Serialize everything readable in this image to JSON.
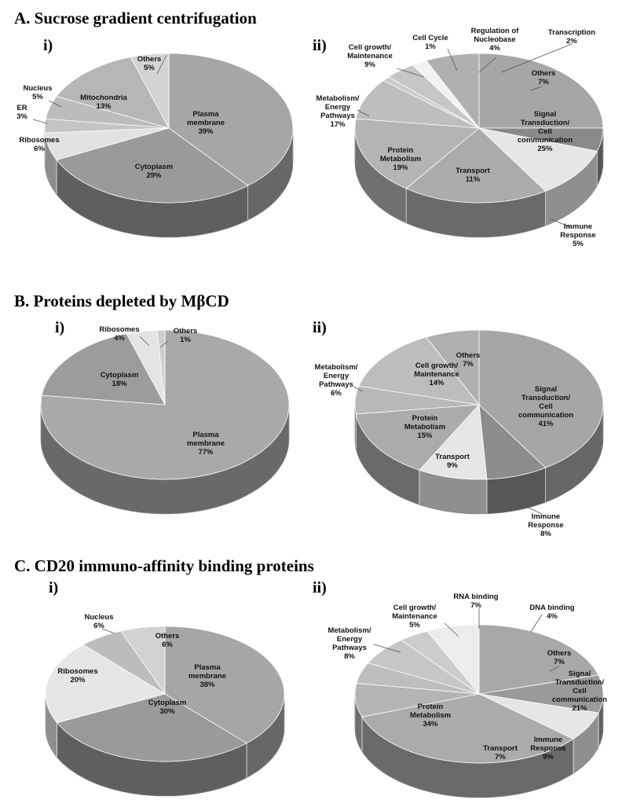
{
  "sections": [
    {
      "letter": "A.",
      "title": "Sucrose gradient centrifugation"
    },
    {
      "letter": "B.",
      "title": "Proteins depleted by MβCD"
    },
    {
      "letter": "C.",
      "title": "CD20 immuno-affinity binding proteins"
    }
  ],
  "chart_data": [
    {
      "type": "pie",
      "section": "A",
      "panel": "i)",
      "slices": [
        {
          "label": [
            "Plasma",
            "membrane"
          ],
          "value": 39,
          "display": "39%",
          "color": "#a6a6a6"
        },
        {
          "label": [
            "Cytoplasm"
          ],
          "value": 29,
          "display": "29%",
          "color": "#9a9a9a"
        },
        {
          "label": [
            "Ribosomes"
          ],
          "value": 6,
          "display": "6%",
          "color": "#e2e2e2"
        },
        {
          "label": [
            "ER"
          ],
          "value": 3,
          "display": "3%",
          "color": "#c4c4c4"
        },
        {
          "label": [
            "Nucleus"
          ],
          "value": 5,
          "display": "5%",
          "color": "#bcbcbc"
        },
        {
          "label": [
            "Mitochondria"
          ],
          "value": 13,
          "display": "13%",
          "color": "#b6b6b6"
        },
        {
          "label": [
            "Others"
          ],
          "value": 5,
          "display": "5%",
          "color": "#d4d4d4"
        }
      ]
    },
    {
      "type": "pie",
      "section": "A",
      "panel": "ii)",
      "slices": [
        {
          "label": [
            "Signal",
            "Transduction/",
            "Cell",
            "communication"
          ],
          "value": 25,
          "display": "25%",
          "color": "#a6a6a6"
        },
        {
          "label": [
            "Immune",
            "Response"
          ],
          "value": 5,
          "display": "5%",
          "color": "#8a8a8a"
        },
        {
          "label": [
            "Transport"
          ],
          "value": 11,
          "display": "11%",
          "color": "#e6e6e6"
        },
        {
          "label": [
            "Protein",
            "Metabolism"
          ],
          "value": 19,
          "display": "19%",
          "color": "#ababab"
        },
        {
          "label": [
            "Metabolism/",
            "Energy",
            "Pathways"
          ],
          "value": 17,
          "display": "17%",
          "color": "#b4b4b4"
        },
        {
          "label": [
            "Cell growth/",
            "Maintenance"
          ],
          "value": 9,
          "display": "9%",
          "color": "#bebebe"
        },
        {
          "label": [
            "Cell Cycle"
          ],
          "value": 1,
          "display": "1%",
          "color": "#cacaca"
        },
        {
          "label": [
            "Regulation of",
            "Nucleobase"
          ],
          "value": 4,
          "display": "4%",
          "color": "#c6c6c6"
        },
        {
          "label": [
            "Transcription"
          ],
          "value": 2,
          "display": "2%",
          "color": "#f2f2f2"
        },
        {
          "label": [
            "Others"
          ],
          "value": 7,
          "display": "7%",
          "color": "#b0b0b0"
        }
      ]
    },
    {
      "type": "pie",
      "section": "B",
      "panel": "i)",
      "slices": [
        {
          "label": [
            "Plasma",
            "membrane"
          ],
          "value": 77,
          "display": "77%",
          "color": "#a9a9a9"
        },
        {
          "label": [
            "Cytoplasm"
          ],
          "value": 18,
          "display": "18%",
          "color": "#9c9c9c"
        },
        {
          "label": [
            "Ribosomes"
          ],
          "value": 4,
          "display": "4%",
          "color": "#e4e4e4"
        },
        {
          "label": [
            "Others"
          ],
          "value": 1,
          "display": "1%",
          "color": "#cfcfcf"
        }
      ]
    },
    {
      "type": "pie",
      "section": "B",
      "panel": "ii)",
      "slices": [
        {
          "label": [
            "Signal",
            "Transduction/",
            "Cell",
            "communication"
          ],
          "value": 41,
          "display": "41%",
          "color": "#a6a6a6"
        },
        {
          "label": [
            "Immune",
            "Response"
          ],
          "value": 8,
          "display": "8%",
          "color": "#8c8c8c"
        },
        {
          "label": [
            "Transport"
          ],
          "value": 9,
          "display": "9%",
          "color": "#e6e6e6"
        },
        {
          "label": [
            "Protein",
            "Metabolism"
          ],
          "value": 15,
          "display": "15%",
          "color": "#ababab"
        },
        {
          "label": [
            "Metabolism/",
            "Energy",
            "Pathways"
          ],
          "value": 6,
          "display": "6%",
          "color": "#b8b8b8"
        },
        {
          "label": [
            "Cell growth/",
            "Maintenance"
          ],
          "value": 14,
          "display": "14%",
          "color": "#bdbdbd"
        },
        {
          "label": [
            "Others"
          ],
          "value": 7,
          "display": "7%",
          "color": "#b0b0b0"
        }
      ]
    },
    {
      "type": "pie",
      "section": "C",
      "panel": "i)",
      "slices": [
        {
          "label": [
            "Plasma",
            "membrane"
          ],
          "value": 38,
          "display": "38%",
          "color": "#a6a6a6"
        },
        {
          "label": [
            "Cytoplasm"
          ],
          "value": 30,
          "display": "30%",
          "color": "#9a9a9a"
        },
        {
          "label": [
            "Ribosomes"
          ],
          "value": 20,
          "display": "20%",
          "color": "#e6e6e6"
        },
        {
          "label": [
            "Nucleus"
          ],
          "value": 6,
          "display": "6%",
          "color": "#bcbcbc"
        },
        {
          "label": [
            "Others"
          ],
          "value": 6,
          "display": "6%",
          "color": "#d2d2d2"
        }
      ]
    },
    {
      "type": "pie",
      "section": "C",
      "panel": "ii)",
      "slices": [
        {
          "label": [
            "Signal",
            "Transduction/",
            "Cell",
            "communication"
          ],
          "value": 21,
          "display": "21%",
          "color": "#a8a8a8"
        },
        {
          "label": [
            "Immune",
            "Response"
          ],
          "value": 9,
          "display": "9%",
          "color": "#9a9a9a"
        },
        {
          "label": [
            "Transport"
          ],
          "value": 7,
          "display": "7%",
          "color": "#e6e6e6"
        },
        {
          "label": [
            "Protein",
            "Metabolism"
          ],
          "value": 34,
          "display": "34%",
          "color": "#ababab"
        },
        {
          "label": [
            "Metabolism/",
            "Energy",
            "Pathways"
          ],
          "value": 8,
          "display": "8%",
          "color": "#b4b4b4"
        },
        {
          "label": [
            "Cell growth/",
            "Maintenance"
          ],
          "value": 5,
          "display": "5%",
          "color": "#bebebe"
        },
        {
          "label": [
            "RNA binding"
          ],
          "value": 7,
          "display": "7%",
          "color": "#c6c6c6"
        },
        {
          "label": [
            "DNA binding"
          ],
          "value": 4,
          "display": "4%",
          "color": "#cccccc"
        },
        {
          "label": [
            "Others"
          ],
          "value": 7,
          "display": "7%",
          "color": "#ececec"
        }
      ]
    }
  ]
}
